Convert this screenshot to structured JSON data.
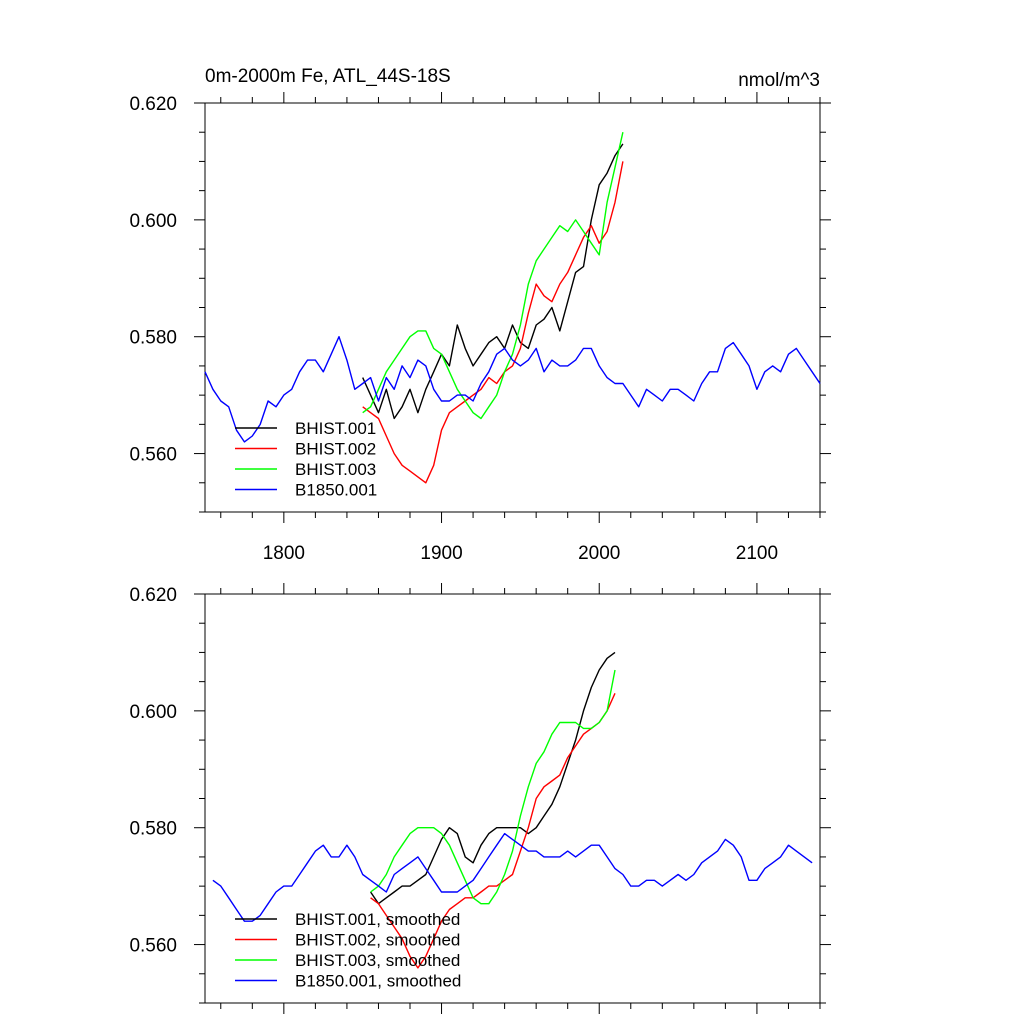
{
  "figure": {
    "title_left": "0m-2000m Fe, ATL_44S-18S",
    "title_right": "nmol/m^3"
  },
  "chart_data": [
    {
      "type": "line",
      "title": "0m-2000m Fe, ATL_44S-18S",
      "units": "nmol/m^3",
      "xlabel": "",
      "ylabel": "",
      "xlim": [
        1750,
        2140
      ],
      "ylim": [
        0.55,
        0.62
      ],
      "x_ticks": [
        1800,
        1900,
        2000,
        2100
      ],
      "x_tick_labels": [
        "1800",
        "1900",
        "2000",
        "2100"
      ],
      "y_ticks": [
        0.56,
        0.58,
        0.6,
        0.62
      ],
      "y_tick_labels": [
        "0.560",
        "0.580",
        "0.600",
        "0.620"
      ],
      "grid": false,
      "legend_position": "bottom-left",
      "series": [
        {
          "name": "BHIST.001",
          "color": "#000000",
          "x": [
            1850,
            1855,
            1860,
            1865,
            1870,
            1875,
            1880,
            1885,
            1890,
            1895,
            1900,
            1905,
            1910,
            1915,
            1920,
            1925,
            1930,
            1935,
            1940,
            1945,
            1950,
            1955,
            1960,
            1965,
            1970,
            1975,
            1980,
            1985,
            1990,
            1995,
            2000,
            2005,
            2010,
            2015
          ],
          "y": [
            0.573,
            0.57,
            0.567,
            0.571,
            0.566,
            0.568,
            0.571,
            0.567,
            0.571,
            0.574,
            0.577,
            0.575,
            0.582,
            0.578,
            0.575,
            0.577,
            0.579,
            0.58,
            0.578,
            0.582,
            0.579,
            0.578,
            0.582,
            0.583,
            0.585,
            0.581,
            0.586,
            0.591,
            0.592,
            0.6,
            0.606,
            0.608,
            0.611,
            0.613
          ]
        },
        {
          "name": "BHIST.002",
          "color": "#ff0000",
          "x": [
            1850,
            1855,
            1860,
            1865,
            1870,
            1875,
            1880,
            1885,
            1890,
            1895,
            1900,
            1905,
            1910,
            1915,
            1920,
            1925,
            1930,
            1935,
            1940,
            1945,
            1950,
            1955,
            1960,
            1965,
            1970,
            1975,
            1980,
            1985,
            1990,
            1995,
            2000,
            2005,
            2010,
            2015
          ],
          "y": [
            0.568,
            0.567,
            0.566,
            0.563,
            0.56,
            0.558,
            0.557,
            0.556,
            0.555,
            0.558,
            0.564,
            0.567,
            0.568,
            0.569,
            0.57,
            0.571,
            0.573,
            0.572,
            0.574,
            0.575,
            0.578,
            0.584,
            0.589,
            0.587,
            0.586,
            0.589,
            0.591,
            0.594,
            0.597,
            0.599,
            0.596,
            0.598,
            0.603,
            0.61
          ]
        },
        {
          "name": "BHIST.003",
          "color": "#00ff00",
          "x": [
            1850,
            1855,
            1860,
            1865,
            1870,
            1875,
            1880,
            1885,
            1890,
            1895,
            1900,
            1905,
            1910,
            1915,
            1920,
            1925,
            1930,
            1935,
            1940,
            1945,
            1950,
            1955,
            1960,
            1965,
            1970,
            1975,
            1980,
            1985,
            1990,
            1995,
            2000,
            2005,
            2010,
            2015
          ],
          "y": [
            0.567,
            0.568,
            0.571,
            0.574,
            0.576,
            0.578,
            0.58,
            0.581,
            0.581,
            0.578,
            0.577,
            0.574,
            0.571,
            0.569,
            0.567,
            0.566,
            0.568,
            0.57,
            0.574,
            0.577,
            0.582,
            0.589,
            0.593,
            0.595,
            0.597,
            0.599,
            0.598,
            0.6,
            0.598,
            0.596,
            0.594,
            0.603,
            0.609,
            0.615
          ]
        },
        {
          "name": "B1850.001",
          "color": "#0000ff",
          "x": [
            1750,
            1755,
            1760,
            1765,
            1770,
            1775,
            1780,
            1785,
            1790,
            1795,
            1800,
            1805,
            1810,
            1815,
            1820,
            1825,
            1830,
            1835,
            1840,
            1845,
            1850,
            1855,
            1860,
            1865,
            1870,
            1875,
            1880,
            1885,
            1890,
            1895,
            1900,
            1905,
            1910,
            1915,
            1920,
            1925,
            1930,
            1935,
            1940,
            1945,
            1950,
            1955,
            1960,
            1965,
            1970,
            1975,
            1980,
            1985,
            1990,
            1995,
            2000,
            2005,
            2010,
            2015,
            2020,
            2025,
            2030,
            2035,
            2040,
            2045,
            2050,
            2055,
            2060,
            2065,
            2070,
            2075,
            2080,
            2085,
            2090,
            2095,
            2100,
            2105,
            2110,
            2115,
            2120,
            2125,
            2130,
            2135,
            2140
          ],
          "y": [
            0.574,
            0.571,
            0.569,
            0.568,
            0.564,
            0.562,
            0.563,
            0.565,
            0.569,
            0.568,
            0.57,
            0.571,
            0.574,
            0.576,
            0.576,
            0.574,
            0.577,
            0.58,
            0.576,
            0.571,
            0.572,
            0.573,
            0.569,
            0.573,
            0.571,
            0.575,
            0.573,
            0.576,
            0.575,
            0.571,
            0.569,
            0.569,
            0.57,
            0.57,
            0.569,
            0.572,
            0.574,
            0.577,
            0.578,
            0.576,
            0.575,
            0.576,
            0.578,
            0.574,
            0.576,
            0.575,
            0.575,
            0.576,
            0.578,
            0.578,
            0.575,
            0.573,
            0.572,
            0.572,
            0.57,
            0.568,
            0.571,
            0.57,
            0.569,
            0.571,
            0.571,
            0.57,
            0.569,
            0.572,
            0.574,
            0.574,
            0.578,
            0.579,
            0.577,
            0.575,
            0.571,
            0.574,
            0.575,
            0.574,
            0.577,
            0.578,
            0.576,
            0.574,
            0.572
          ]
        }
      ]
    },
    {
      "type": "line",
      "title": "",
      "xlabel": "",
      "ylabel": "",
      "xlim": [
        1750,
        2140
      ],
      "ylim": [
        0.55,
        0.62
      ],
      "x_ticks": [
        1800,
        1900,
        2000,
        2100
      ],
      "x_tick_labels": [],
      "y_ticks": [
        0.56,
        0.58,
        0.6,
        0.62
      ],
      "y_tick_labels": [
        "0.560",
        "0.580",
        "0.600",
        "0.620"
      ],
      "grid": false,
      "legend_position": "bottom-left",
      "series": [
        {
          "name": "BHIST.001, smoothed",
          "color": "#000000",
          "x": [
            1855,
            1860,
            1865,
            1870,
            1875,
            1880,
            1885,
            1890,
            1895,
            1900,
            1905,
            1910,
            1915,
            1920,
            1925,
            1930,
            1935,
            1940,
            1945,
            1950,
            1955,
            1960,
            1965,
            1970,
            1975,
            1980,
            1985,
            1990,
            1995,
            2000,
            2005,
            2010
          ],
          "y": [
            0.569,
            0.567,
            0.568,
            0.569,
            0.57,
            0.57,
            0.571,
            0.572,
            0.575,
            0.578,
            0.58,
            0.579,
            0.575,
            0.574,
            0.577,
            0.579,
            0.58,
            0.58,
            0.58,
            0.58,
            0.579,
            0.58,
            0.582,
            0.584,
            0.587,
            0.591,
            0.595,
            0.6,
            0.604,
            0.607,
            0.609,
            0.61
          ]
        },
        {
          "name": "BHIST.002, smoothed",
          "color": "#ff0000",
          "x": [
            1855,
            1860,
            1865,
            1870,
            1875,
            1880,
            1885,
            1890,
            1895,
            1900,
            1905,
            1910,
            1915,
            1920,
            1925,
            1930,
            1935,
            1940,
            1945,
            1950,
            1955,
            1960,
            1965,
            1970,
            1975,
            1980,
            1985,
            1990,
            1995,
            2000,
            2005,
            2010
          ],
          "y": [
            0.568,
            0.567,
            0.565,
            0.563,
            0.561,
            0.558,
            0.556,
            0.558,
            0.561,
            0.564,
            0.566,
            0.567,
            0.568,
            0.568,
            0.569,
            0.57,
            0.57,
            0.571,
            0.572,
            0.576,
            0.58,
            0.585,
            0.587,
            0.588,
            0.589,
            0.592,
            0.594,
            0.596,
            0.597,
            0.598,
            0.6,
            0.603
          ]
        },
        {
          "name": "BHIST.003, smoothed",
          "color": "#00ff00",
          "x": [
            1855,
            1860,
            1865,
            1870,
            1875,
            1880,
            1885,
            1890,
            1895,
            1900,
            1905,
            1910,
            1915,
            1920,
            1925,
            1930,
            1935,
            1940,
            1945,
            1950,
            1955,
            1960,
            1965,
            1970,
            1975,
            1980,
            1985,
            1990,
            1995,
            2000,
            2005,
            2010
          ],
          "y": [
            0.569,
            0.57,
            0.572,
            0.575,
            0.577,
            0.579,
            0.58,
            0.58,
            0.58,
            0.579,
            0.577,
            0.574,
            0.571,
            0.568,
            0.567,
            0.567,
            0.569,
            0.572,
            0.576,
            0.582,
            0.587,
            0.591,
            0.593,
            0.596,
            0.598,
            0.598,
            0.598,
            0.597,
            0.597,
            0.598,
            0.6,
            0.607
          ]
        },
        {
          "name": "B1850.001, smoothed",
          "color": "#0000ff",
          "x": [
            1755,
            1760,
            1765,
            1770,
            1775,
            1780,
            1785,
            1790,
            1795,
            1800,
            1805,
            1810,
            1815,
            1820,
            1825,
            1830,
            1835,
            1840,
            1845,
            1850,
            1855,
            1860,
            1865,
            1870,
            1875,
            1880,
            1885,
            1890,
            1895,
            1900,
            1905,
            1910,
            1915,
            1920,
            1925,
            1930,
            1935,
            1940,
            1945,
            1950,
            1955,
            1960,
            1965,
            1970,
            1975,
            1980,
            1985,
            1990,
            1995,
            2000,
            2005,
            2010,
            2015,
            2020,
            2025,
            2030,
            2035,
            2040,
            2045,
            2050,
            2055,
            2060,
            2065,
            2070,
            2075,
            2080,
            2085,
            2090,
            2095,
            2100,
            2105,
            2110,
            2115,
            2120,
            2125,
            2130,
            2135
          ],
          "y": [
            0.571,
            0.57,
            0.568,
            0.566,
            0.564,
            0.564,
            0.565,
            0.567,
            0.569,
            0.57,
            0.57,
            0.572,
            0.574,
            0.576,
            0.577,
            0.575,
            0.575,
            0.577,
            0.575,
            0.572,
            0.571,
            0.57,
            0.569,
            0.572,
            0.573,
            0.574,
            0.575,
            0.573,
            0.571,
            0.569,
            0.569,
            0.569,
            0.57,
            0.571,
            0.573,
            0.575,
            0.577,
            0.579,
            0.578,
            0.577,
            0.576,
            0.576,
            0.575,
            0.575,
            0.575,
            0.576,
            0.575,
            0.576,
            0.577,
            0.577,
            0.575,
            0.573,
            0.572,
            0.57,
            0.57,
            0.571,
            0.571,
            0.57,
            0.571,
            0.572,
            0.571,
            0.572,
            0.574,
            0.575,
            0.576,
            0.578,
            0.577,
            0.575,
            0.571,
            0.571,
            0.573,
            0.574,
            0.575,
            0.577,
            0.576,
            0.575,
            0.574
          ]
        }
      ]
    }
  ]
}
